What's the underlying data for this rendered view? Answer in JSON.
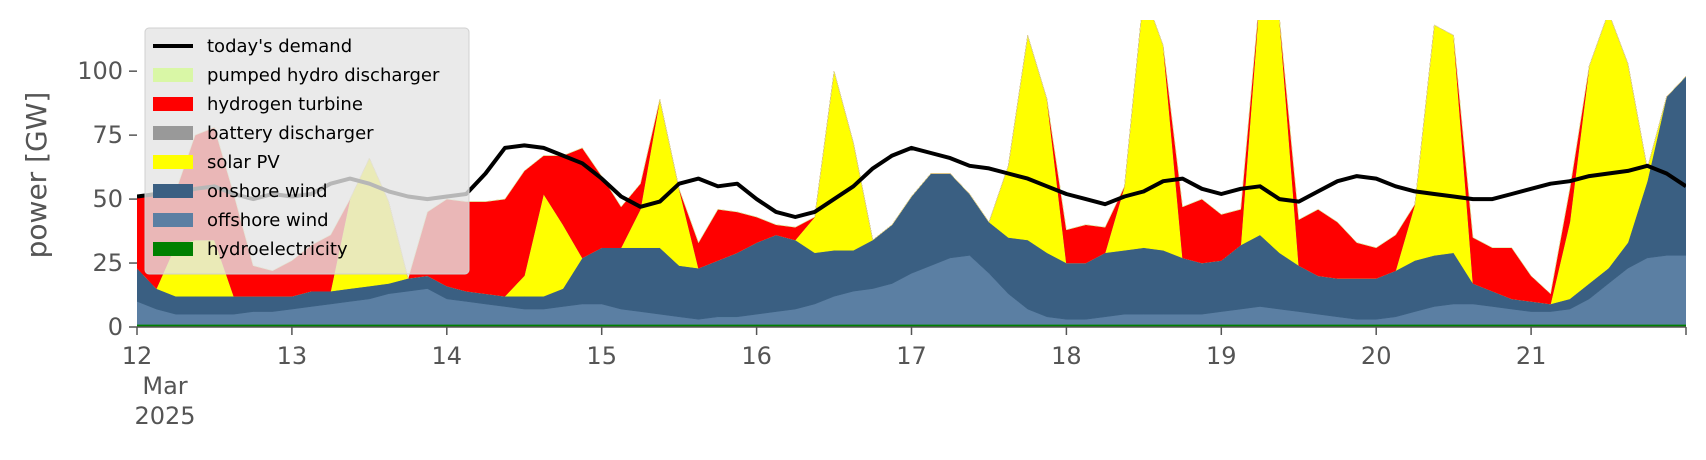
{
  "chart_data": {
    "type": "area",
    "stacked": true,
    "title": "",
    "xlabel": "",
    "ylabel": "power [GW]",
    "x_start": "2025-03-12T00:00",
    "x_end": "2025-03-22T00:00",
    "x_step_hours": 3,
    "xlim": [
      "2025-03-12",
      "2025-03-22"
    ],
    "ylim": [
      0,
      120
    ],
    "y_ticks": [
      0,
      25,
      50,
      75,
      100
    ],
    "x_ticks": [
      {
        "label": "12",
        "sub1": "Mar",
        "sub2": "2025",
        "date": "2025-03-12"
      },
      {
        "label": "13",
        "date": "2025-03-13"
      },
      {
        "label": "14",
        "date": "2025-03-14"
      },
      {
        "label": "15",
        "date": "2025-03-15"
      },
      {
        "label": "16",
        "date": "2025-03-16"
      },
      {
        "label": "17",
        "date": "2025-03-17"
      },
      {
        "label": "18",
        "date": "2025-03-18"
      },
      {
        "label": "19",
        "date": "2025-03-19"
      },
      {
        "label": "20",
        "date": "2025-03-20"
      },
      {
        "label": "21",
        "date": "2025-03-21"
      }
    ],
    "grid": false,
    "legend_position": "top-left",
    "series": [
      {
        "name": "hydroelectricity",
        "color": "#008000",
        "values": [
          1,
          1,
          1,
          1,
          1,
          1,
          1,
          1,
          1,
          1,
          1,
          1,
          1,
          1,
          1,
          1,
          1,
          1,
          1,
          1,
          1,
          1,
          1,
          1,
          1,
          1,
          1,
          1,
          1,
          1,
          1,
          1,
          1,
          1,
          1,
          1,
          1,
          1,
          1,
          1,
          1,
          1,
          1,
          1,
          1,
          1,
          1,
          1,
          1,
          1,
          1,
          1,
          1,
          1,
          1,
          1,
          1,
          1,
          1,
          1,
          1,
          1,
          1,
          1,
          1,
          1,
          1,
          1,
          1,
          1,
          1,
          1,
          1,
          1,
          1,
          1,
          1,
          1,
          1,
          1,
          1
        ]
      },
      {
        "name": "offshore wind",
        "color": "#5b7fa3",
        "values": [
          9,
          6,
          4,
          4,
          4,
          4,
          5,
          5,
          6,
          7,
          8,
          9,
          10,
          12,
          13,
          14,
          10,
          9,
          8,
          7,
          6,
          6,
          7,
          8,
          8,
          6,
          5,
          4,
          3,
          2,
          3,
          3,
          4,
          5,
          6,
          8,
          11,
          13,
          14,
          16,
          20,
          23,
          26,
          27,
          20,
          12,
          6,
          3,
          2,
          2,
          3,
          4,
          4,
          4,
          4,
          4,
          5,
          6,
          7,
          6,
          5,
          4,
          3,
          2,
          2,
          3,
          5,
          7,
          8,
          8,
          7,
          6,
          5,
          5,
          6,
          10,
          16,
          22,
          26,
          27,
          27
        ]
      },
      {
        "name": "onshore wind",
        "color": "#3a5f82",
        "values": [
          13,
          8,
          7,
          7,
          7,
          7,
          6,
          6,
          5,
          6,
          5,
          5,
          5,
          4,
          5,
          5,
          5,
          4,
          4,
          4,
          5,
          5,
          7,
          18,
          22,
          24,
          25,
          26,
          20,
          20,
          22,
          25,
          28,
          30,
          27,
          20,
          18,
          16,
          19,
          23,
          30,
          36,
          33,
          24,
          20,
          22,
          27,
          25,
          22,
          22,
          25,
          25,
          26,
          25,
          22,
          20,
          20,
          25,
          28,
          22,
          18,
          15,
          15,
          16,
          16,
          18,
          20,
          20,
          20,
          8,
          6,
          4,
          4,
          3,
          4,
          6,
          6,
          10,
          30,
          62,
          70
        ]
      },
      {
        "name": "solar PV",
        "color": "#ffff00",
        "values": [
          0,
          0,
          20,
          22,
          22,
          0,
          0,
          0,
          0,
          0,
          0,
          35,
          50,
          32,
          0,
          0,
          0,
          0,
          0,
          0,
          8,
          40,
          25,
          0,
          0,
          0,
          15,
          58,
          30,
          0,
          0,
          0,
          0,
          0,
          0,
          14,
          70,
          42,
          0,
          0,
          0,
          0,
          0,
          0,
          0,
          28,
          80,
          60,
          0,
          0,
          0,
          25,
          100,
          80,
          0,
          0,
          0,
          0,
          95,
          92,
          0,
          0,
          0,
          0,
          0,
          0,
          22,
          90,
          85,
          0,
          0,
          0,
          0,
          0,
          30,
          85,
          100,
          70,
          5,
          0,
          0
        ]
      },
      {
        "name": "battery discharger",
        "color": "#999999",
        "values": [
          0,
          0,
          0,
          0,
          0,
          0,
          0,
          0,
          0,
          0,
          0,
          0,
          0,
          0,
          0,
          0,
          0,
          0,
          0,
          0,
          0,
          0,
          0,
          0,
          0,
          0,
          0,
          0,
          0,
          0,
          0,
          0,
          0,
          0,
          0,
          0,
          0,
          0,
          0,
          0,
          0,
          0,
          0,
          0,
          0,
          0,
          0,
          0,
          0,
          0,
          0,
          0,
          0,
          0,
          0,
          0,
          0,
          0,
          0,
          0,
          0,
          0,
          0,
          0,
          0,
          0,
          0,
          0,
          0,
          0,
          0,
          0,
          0,
          0,
          0,
          0,
          0,
          0,
          0,
          0,
          0
        ]
      },
      {
        "name": "hydrogen turbine",
        "color": "#ff0000",
        "values": [
          28,
          38,
          21,
          41,
          44,
          40,
          12,
          10,
          14,
          18,
          22,
          0,
          0,
          0,
          0,
          25,
          34,
          35,
          36,
          38,
          41,
          15,
          27,
          43,
          28,
          16,
          10,
          0,
          0,
          10,
          20,
          16,
          10,
          4,
          5,
          0,
          0,
          0,
          0,
          0,
          0,
          0,
          0,
          0,
          0,
          0,
          0,
          0,
          13,
          15,
          10,
          0,
          0,
          0,
          20,
          25,
          18,
          14,
          0,
          0,
          18,
          26,
          22,
          14,
          12,
          14,
          0,
          0,
          0,
          18,
          17,
          20,
          10,
          4,
          13,
          0,
          0,
          0,
          0,
          0,
          0
        ]
      },
      {
        "name": "pumped hydro discharger",
        "color": "#d9f7a6",
        "values": [
          0,
          0,
          0,
          0,
          0,
          0,
          0,
          0,
          0,
          0,
          0,
          0,
          0,
          0,
          0,
          0,
          0,
          0,
          0,
          0,
          0,
          0,
          0,
          0,
          0,
          0,
          0,
          0,
          0,
          0,
          0,
          0,
          0,
          0,
          0,
          0,
          0,
          0,
          0,
          0,
          0,
          0,
          0,
          0,
          0,
          0,
          0,
          0,
          0,
          0,
          0,
          0,
          0,
          0,
          0,
          0,
          0,
          0,
          0,
          0,
          0,
          0,
          0,
          0,
          0,
          0,
          0,
          0,
          0,
          0,
          0,
          0,
          0,
          0,
          0,
          0,
          0,
          0,
          0,
          0,
          0
        ]
      },
      {
        "name": "today's demand",
        "type": "line",
        "color": "#000000",
        "values": [
          51,
          52,
          52,
          54,
          55,
          52,
          50,
          52,
          51,
          52,
          56,
          58,
          56,
          53,
          51,
          50,
          51,
          52,
          60,
          70,
          71,
          70,
          67,
          64,
          58,
          51,
          47,
          49,
          56,
          58,
          55,
          56,
          50,
          45,
          43,
          45,
          50,
          55,
          62,
          67,
          70,
          68,
          66,
          63,
          62,
          60,
          58,
          55,
          52,
          50,
          48,
          51,
          53,
          57,
          58,
          54,
          52,
          54,
          55,
          50,
          49,
          53,
          57,
          59,
          58,
          55,
          53,
          52,
          51,
          50,
          50,
          52,
          54,
          56,
          57,
          59,
          60,
          61,
          63,
          60,
          55
        ]
      }
    ],
    "legend": [
      {
        "name": "today's demand",
        "kind": "line",
        "color": "#000000"
      },
      {
        "name": "pumped hydro discharger",
        "kind": "patch",
        "color": "#d9f7a6"
      },
      {
        "name": "hydrogen turbine",
        "kind": "patch",
        "color": "#ff0000"
      },
      {
        "name": "battery discharger",
        "kind": "patch",
        "color": "#999999"
      },
      {
        "name": "solar PV",
        "kind": "patch",
        "color": "#ffff00"
      },
      {
        "name": "onshore wind",
        "kind": "patch",
        "color": "#3a5f82"
      },
      {
        "name": "offshore wind",
        "kind": "patch",
        "color": "#5b7fa3"
      },
      {
        "name": "hydroelectricity",
        "kind": "patch",
        "color": "#008000"
      }
    ]
  }
}
